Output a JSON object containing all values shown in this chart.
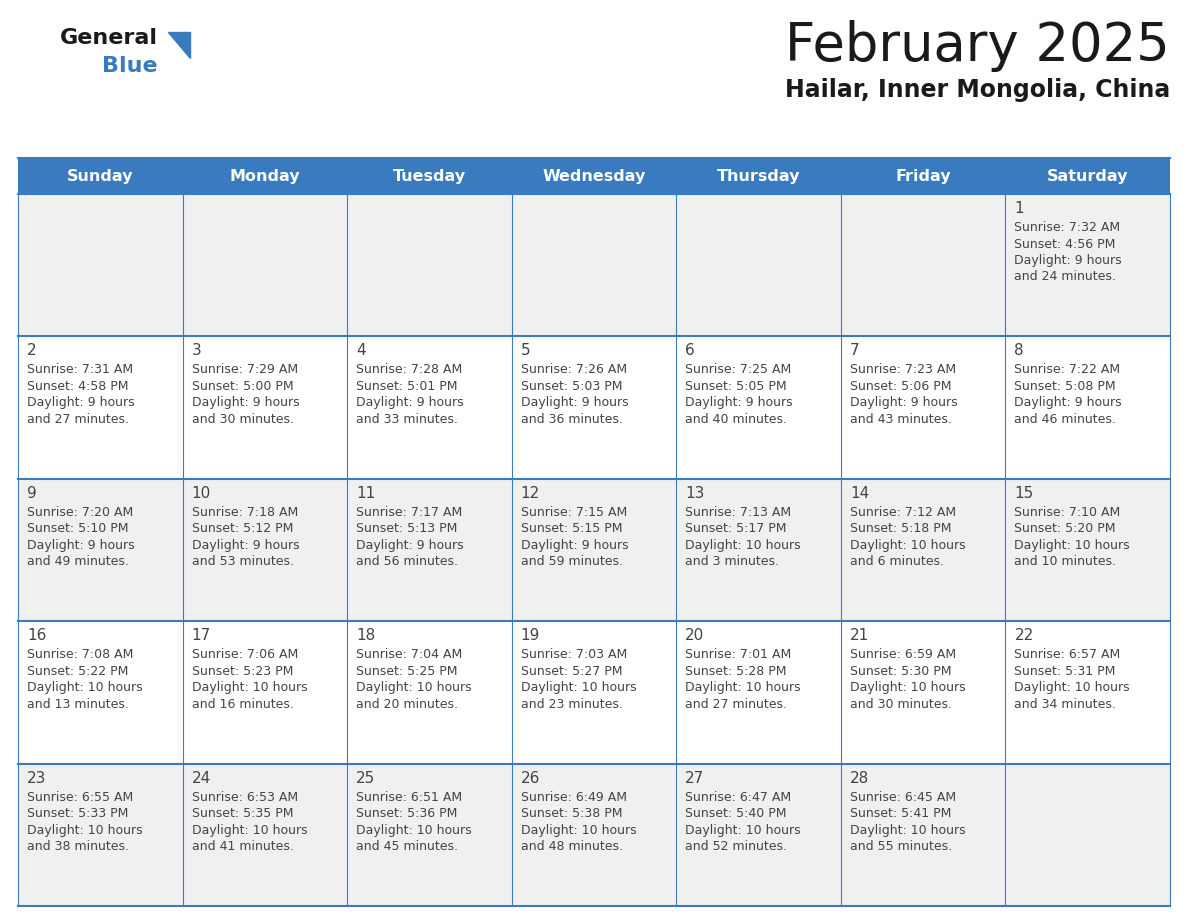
{
  "title": "February 2025",
  "subtitle": "Hailar, Inner Mongolia, China",
  "header_color": "#3a7abf",
  "header_text_color": "#ffffff",
  "day_names": [
    "Sunday",
    "Monday",
    "Tuesday",
    "Wednesday",
    "Thursday",
    "Friday",
    "Saturday"
  ],
  "bg_color_row0": "#f0f0f0",
  "bg_color_row1": "#ffffff",
  "bg_color_row2": "#f0f0f0",
  "bg_color_row3": "#ffffff",
  "bg_color_row4": "#f0f0f0",
  "line_color": "#3a7abf",
  "text_color": "#444444",
  "days": [
    {
      "day": 1,
      "col": 6,
      "row": 0,
      "sunrise": "7:32 AM",
      "sunset": "4:56 PM",
      "daylight_line1": "Daylight: 9 hours",
      "daylight_line2": "and 24 minutes."
    },
    {
      "day": 2,
      "col": 0,
      "row": 1,
      "sunrise": "7:31 AM",
      "sunset": "4:58 PM",
      "daylight_line1": "Daylight: 9 hours",
      "daylight_line2": "and 27 minutes."
    },
    {
      "day": 3,
      "col": 1,
      "row": 1,
      "sunrise": "7:29 AM",
      "sunset": "5:00 PM",
      "daylight_line1": "Daylight: 9 hours",
      "daylight_line2": "and 30 minutes."
    },
    {
      "day": 4,
      "col": 2,
      "row": 1,
      "sunrise": "7:28 AM",
      "sunset": "5:01 PM",
      "daylight_line1": "Daylight: 9 hours",
      "daylight_line2": "and 33 minutes."
    },
    {
      "day": 5,
      "col": 3,
      "row": 1,
      "sunrise": "7:26 AM",
      "sunset": "5:03 PM",
      "daylight_line1": "Daylight: 9 hours",
      "daylight_line2": "and 36 minutes."
    },
    {
      "day": 6,
      "col": 4,
      "row": 1,
      "sunrise": "7:25 AM",
      "sunset": "5:05 PM",
      "daylight_line1": "Daylight: 9 hours",
      "daylight_line2": "and 40 minutes."
    },
    {
      "day": 7,
      "col": 5,
      "row": 1,
      "sunrise": "7:23 AM",
      "sunset": "5:06 PM",
      "daylight_line1": "Daylight: 9 hours",
      "daylight_line2": "and 43 minutes."
    },
    {
      "day": 8,
      "col": 6,
      "row": 1,
      "sunrise": "7:22 AM",
      "sunset": "5:08 PM",
      "daylight_line1": "Daylight: 9 hours",
      "daylight_line2": "and 46 minutes."
    },
    {
      "day": 9,
      "col": 0,
      "row": 2,
      "sunrise": "7:20 AM",
      "sunset": "5:10 PM",
      "daylight_line1": "Daylight: 9 hours",
      "daylight_line2": "and 49 minutes."
    },
    {
      "day": 10,
      "col": 1,
      "row": 2,
      "sunrise": "7:18 AM",
      "sunset": "5:12 PM",
      "daylight_line1": "Daylight: 9 hours",
      "daylight_line2": "and 53 minutes."
    },
    {
      "day": 11,
      "col": 2,
      "row": 2,
      "sunrise": "7:17 AM",
      "sunset": "5:13 PM",
      "daylight_line1": "Daylight: 9 hours",
      "daylight_line2": "and 56 minutes."
    },
    {
      "day": 12,
      "col": 3,
      "row": 2,
      "sunrise": "7:15 AM",
      "sunset": "5:15 PM",
      "daylight_line1": "Daylight: 9 hours",
      "daylight_line2": "and 59 minutes."
    },
    {
      "day": 13,
      "col": 4,
      "row": 2,
      "sunrise": "7:13 AM",
      "sunset": "5:17 PM",
      "daylight_line1": "Daylight: 10 hours",
      "daylight_line2": "and 3 minutes."
    },
    {
      "day": 14,
      "col": 5,
      "row": 2,
      "sunrise": "7:12 AM",
      "sunset": "5:18 PM",
      "daylight_line1": "Daylight: 10 hours",
      "daylight_line2": "and 6 minutes."
    },
    {
      "day": 15,
      "col": 6,
      "row": 2,
      "sunrise": "7:10 AM",
      "sunset": "5:20 PM",
      "daylight_line1": "Daylight: 10 hours",
      "daylight_line2": "and 10 minutes."
    },
    {
      "day": 16,
      "col": 0,
      "row": 3,
      "sunrise": "7:08 AM",
      "sunset": "5:22 PM",
      "daylight_line1": "Daylight: 10 hours",
      "daylight_line2": "and 13 minutes."
    },
    {
      "day": 17,
      "col": 1,
      "row": 3,
      "sunrise": "7:06 AM",
      "sunset": "5:23 PM",
      "daylight_line1": "Daylight: 10 hours",
      "daylight_line2": "and 16 minutes."
    },
    {
      "day": 18,
      "col": 2,
      "row": 3,
      "sunrise": "7:04 AM",
      "sunset": "5:25 PM",
      "daylight_line1": "Daylight: 10 hours",
      "daylight_line2": "and 20 minutes."
    },
    {
      "day": 19,
      "col": 3,
      "row": 3,
      "sunrise": "7:03 AM",
      "sunset": "5:27 PM",
      "daylight_line1": "Daylight: 10 hours",
      "daylight_line2": "and 23 minutes."
    },
    {
      "day": 20,
      "col": 4,
      "row": 3,
      "sunrise": "7:01 AM",
      "sunset": "5:28 PM",
      "daylight_line1": "Daylight: 10 hours",
      "daylight_line2": "and 27 minutes."
    },
    {
      "day": 21,
      "col": 5,
      "row": 3,
      "sunrise": "6:59 AM",
      "sunset": "5:30 PM",
      "daylight_line1": "Daylight: 10 hours",
      "daylight_line2": "and 30 minutes."
    },
    {
      "day": 22,
      "col": 6,
      "row": 3,
      "sunrise": "6:57 AM",
      "sunset": "5:31 PM",
      "daylight_line1": "Daylight: 10 hours",
      "daylight_line2": "and 34 minutes."
    },
    {
      "day": 23,
      "col": 0,
      "row": 4,
      "sunrise": "6:55 AM",
      "sunset": "5:33 PM",
      "daylight_line1": "Daylight: 10 hours",
      "daylight_line2": "and 38 minutes."
    },
    {
      "day": 24,
      "col": 1,
      "row": 4,
      "sunrise": "6:53 AM",
      "sunset": "5:35 PM",
      "daylight_line1": "Daylight: 10 hours",
      "daylight_line2": "and 41 minutes."
    },
    {
      "day": 25,
      "col": 2,
      "row": 4,
      "sunrise": "6:51 AM",
      "sunset": "5:36 PM",
      "daylight_line1": "Daylight: 10 hours",
      "daylight_line2": "and 45 minutes."
    },
    {
      "day": 26,
      "col": 3,
      "row": 4,
      "sunrise": "6:49 AM",
      "sunset": "5:38 PM",
      "daylight_line1": "Daylight: 10 hours",
      "daylight_line2": "and 48 minutes."
    },
    {
      "day": 27,
      "col": 4,
      "row": 4,
      "sunrise": "6:47 AM",
      "sunset": "5:40 PM",
      "daylight_line1": "Daylight: 10 hours",
      "daylight_line2": "and 52 minutes."
    },
    {
      "day": 28,
      "col": 5,
      "row": 4,
      "sunrise": "6:45 AM",
      "sunset": "5:41 PM",
      "daylight_line1": "Daylight: 10 hours",
      "daylight_line2": "and 55 minutes."
    }
  ],
  "logo_general_color": "#1a1a1a",
  "logo_blue_color": "#3a7abf",
  "logo_triangle_color": "#3a7abf"
}
